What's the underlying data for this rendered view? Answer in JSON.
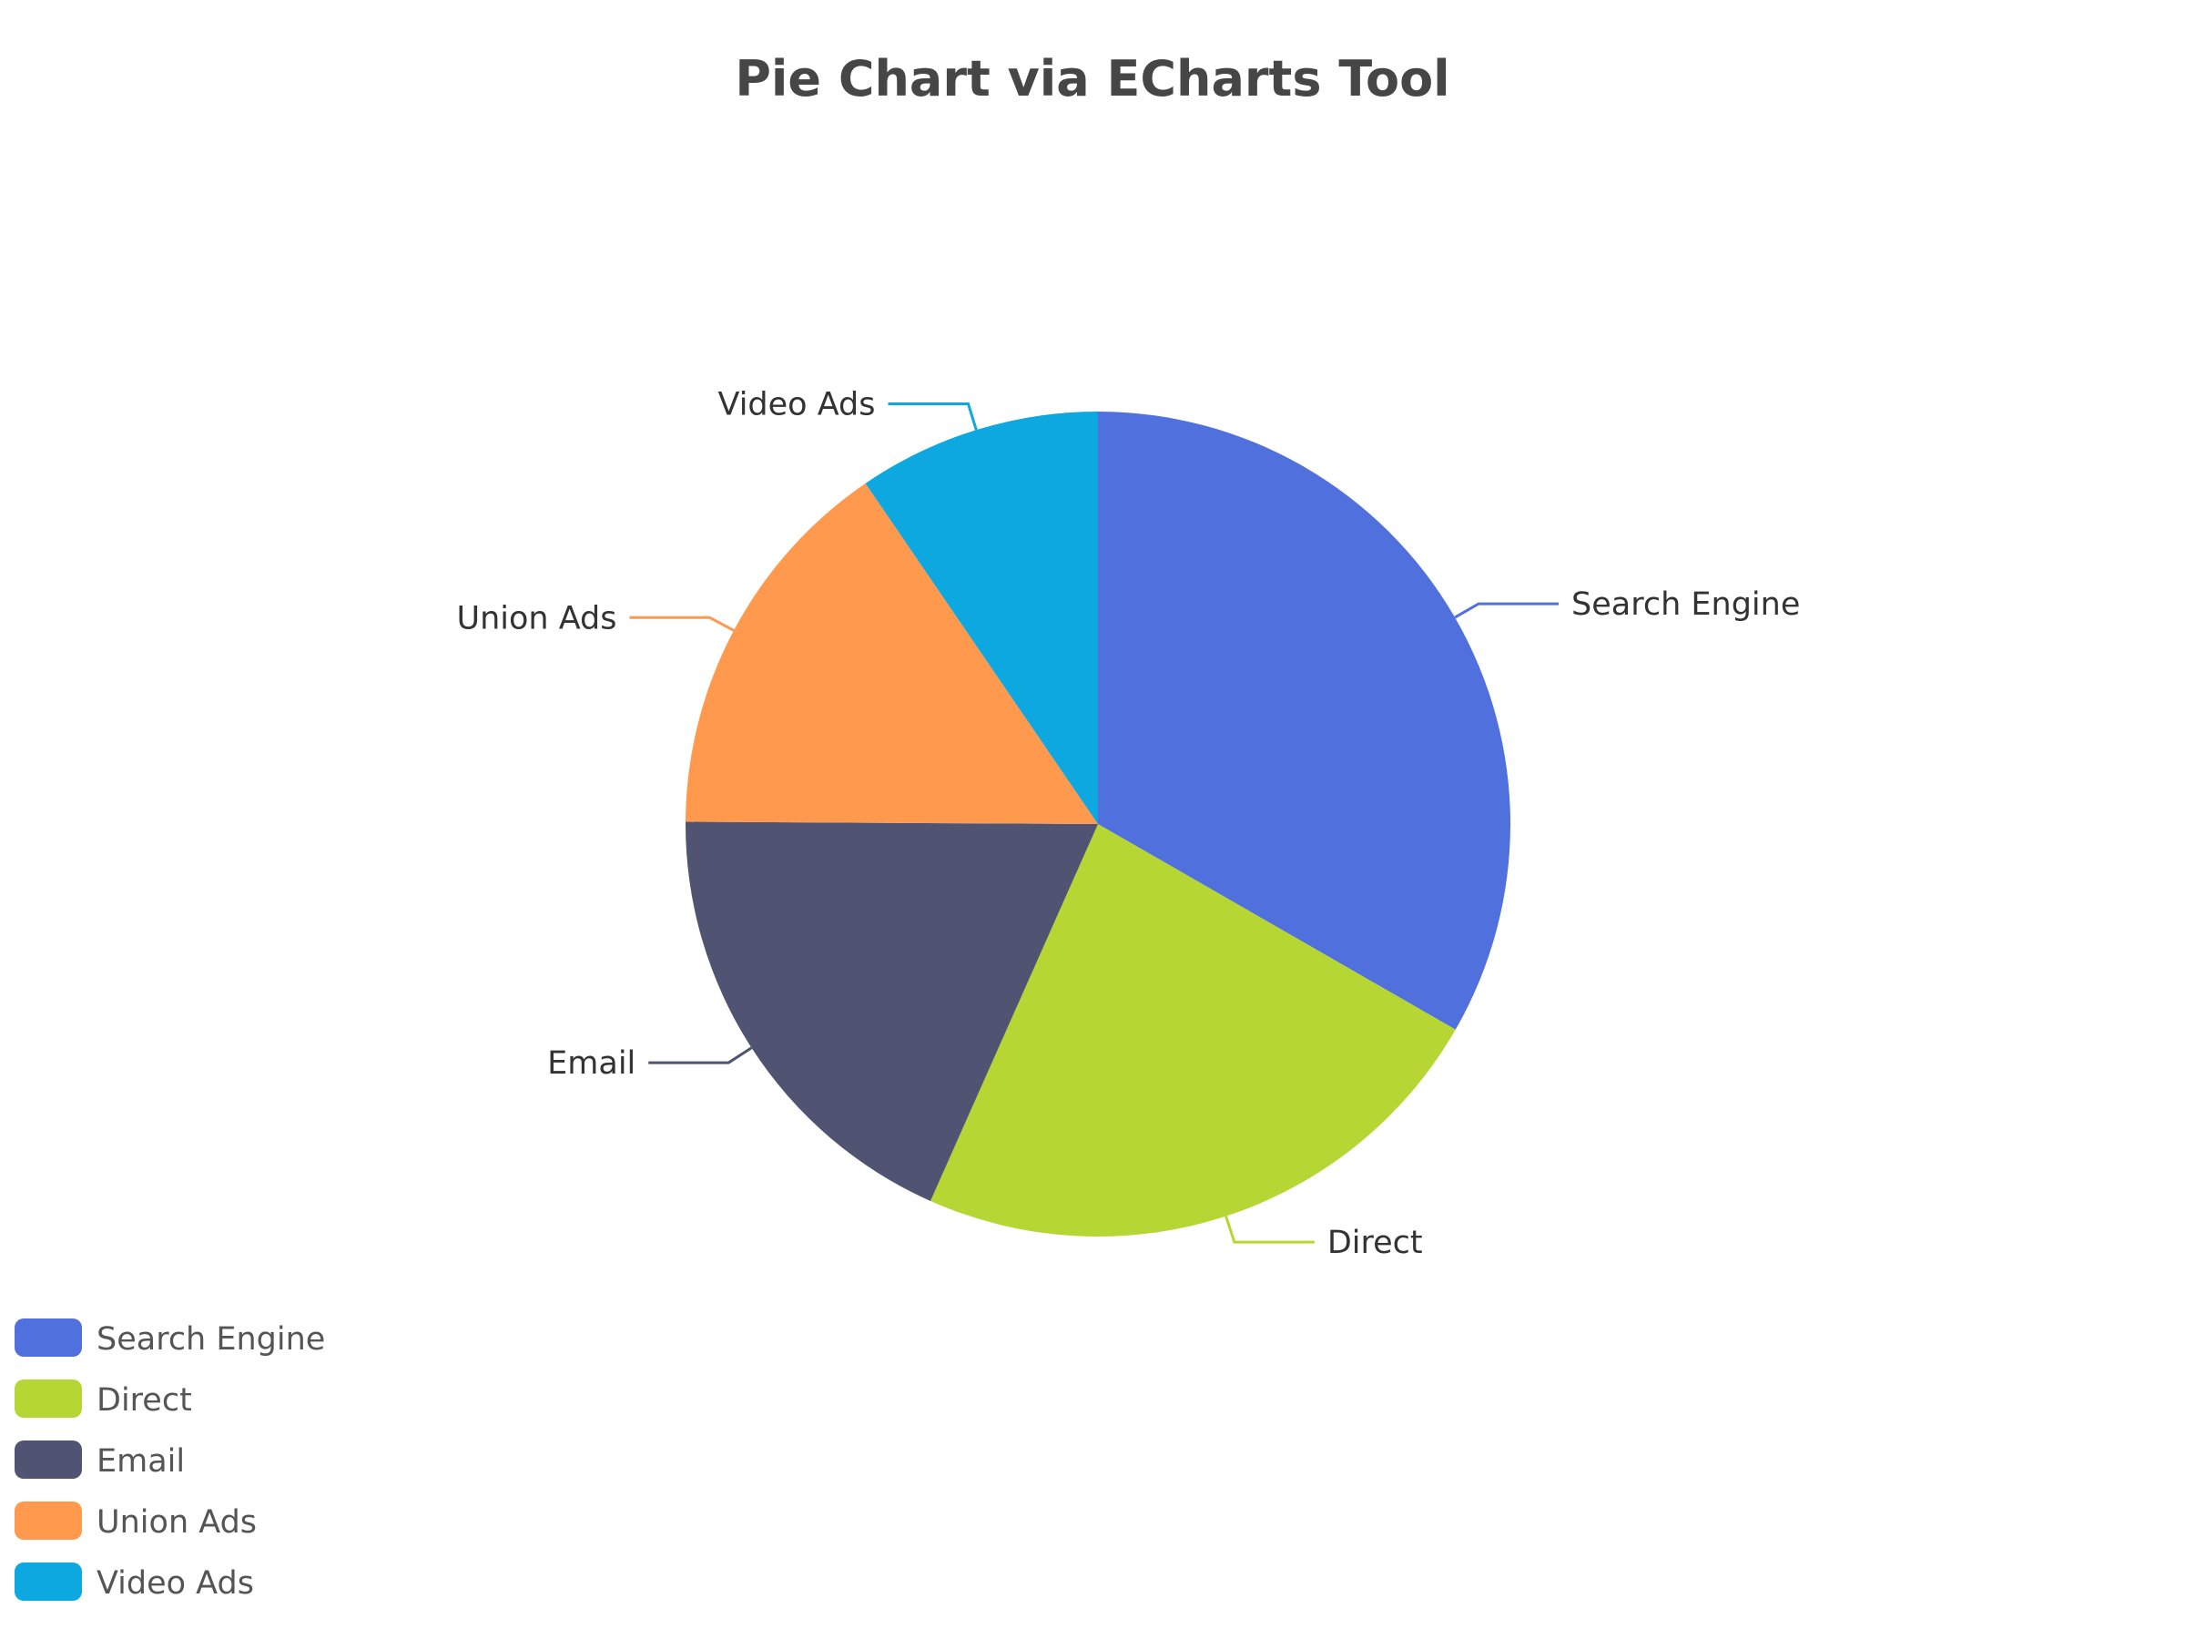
{
  "chart_data": {
    "type": "pie",
    "title": "Pie Chart via ECharts Tool",
    "series": [
      {
        "name": "Search Engine",
        "value": 1048,
        "color": "#5070dd"
      },
      {
        "name": "Direct",
        "value": 735,
        "color": "#b6d634"
      },
      {
        "name": "Email",
        "value": 580,
        "color": "#505372"
      },
      {
        "name": "Union Ads",
        "value": 484,
        "color": "#ff994d"
      },
      {
        "name": "Video Ads",
        "value": 300,
        "color": "#0ca8df"
      }
    ],
    "legend": {
      "position": "bottom-left",
      "orientation": "vertical",
      "items": [
        "Search Engine",
        "Direct",
        "Email",
        "Union Ads",
        "Video Ads"
      ]
    }
  }
}
